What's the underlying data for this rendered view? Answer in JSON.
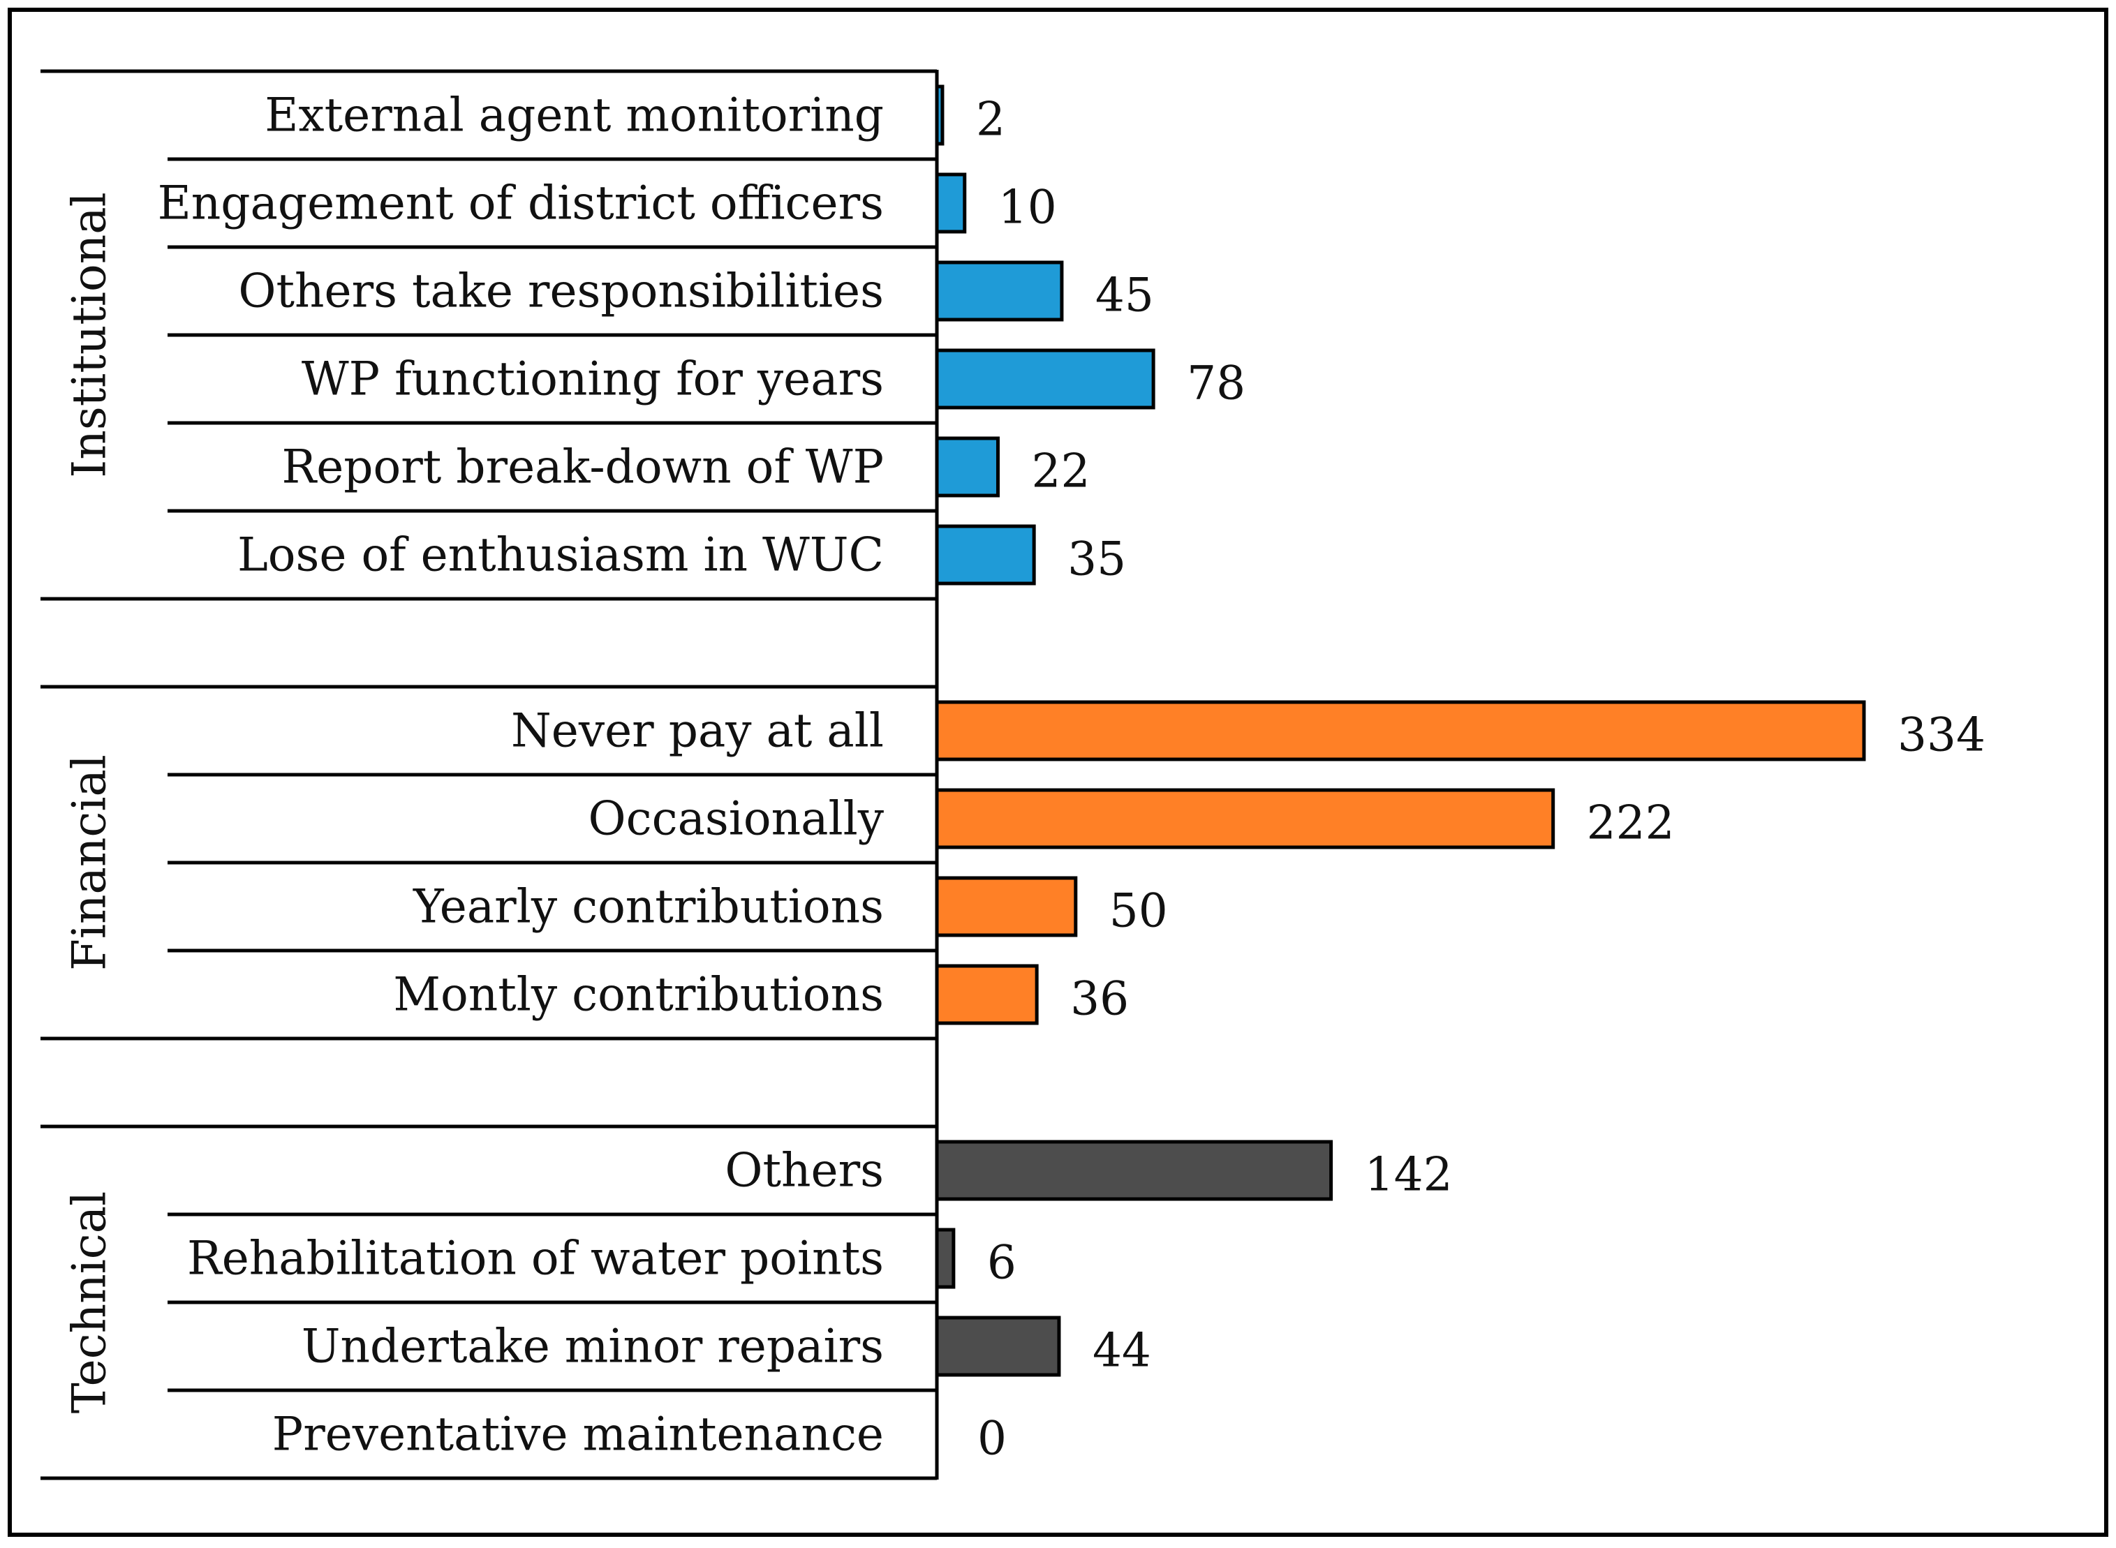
{
  "chart_data": {
    "type": "bar",
    "orientation": "horizontal",
    "title": "",
    "xlabel": "",
    "ylabel": "",
    "xlim": [
      0,
      350
    ],
    "grid": false,
    "legend": "none",
    "groups": [
      {
        "name": "Institutional",
        "color": "#1F9BD7",
        "categories": [
          "External agent monitoring",
          "Engagement of district officers",
          "Others take responsibilities",
          "WP functioning for years",
          "Report break-down of WP",
          "Lose of enthusiasm in WUC"
        ],
        "values": [
          2,
          10,
          45,
          78,
          22,
          35
        ]
      },
      {
        "name": "Financial",
        "color": "#FF8026",
        "categories": [
          "Never pay at all",
          "Occasionally",
          "Yearly contributions",
          "Montly contributions"
        ],
        "values": [
          334,
          222,
          50,
          36
        ]
      },
      {
        "name": "Technical",
        "color": "#4D4D4D",
        "categories": [
          "Others",
          "Rehabilitation of water points",
          "Undertake minor repairs",
          "Preventative maintenance"
        ],
        "values": [
          142,
          6,
          44,
          0
        ]
      }
    ]
  }
}
